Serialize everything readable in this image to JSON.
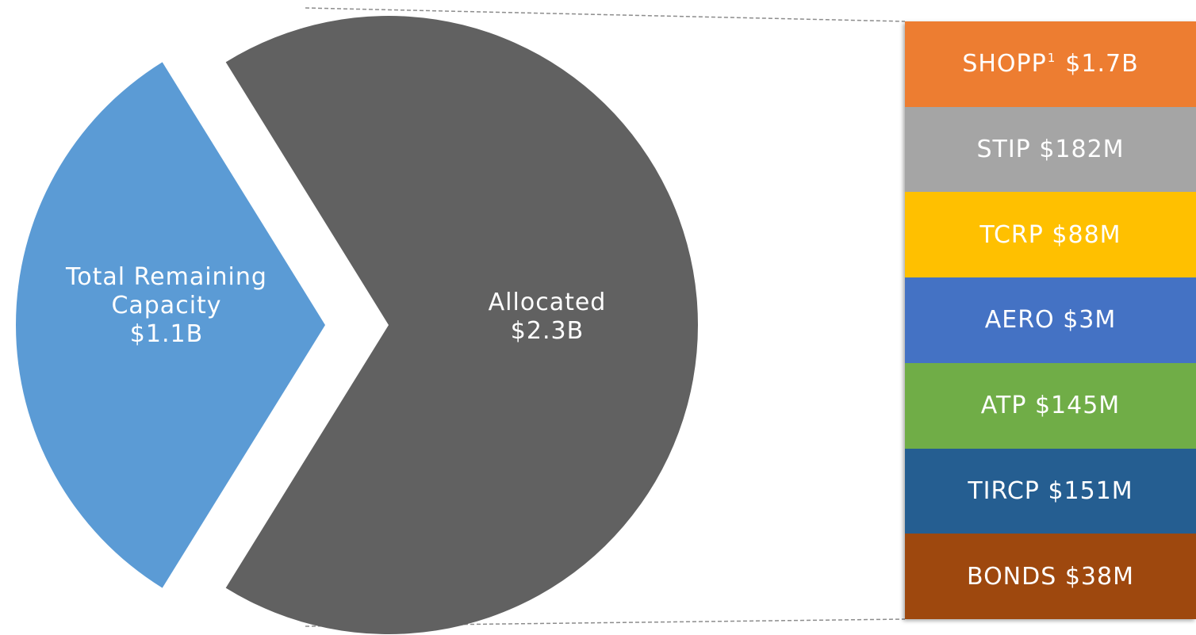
{
  "chart_data": [
    {
      "type": "pie",
      "title": "",
      "slices": [
        {
          "label_lines": [
            "Total Remaining",
            "Capacity",
            "$1.1B"
          ],
          "value": 1.1,
          "unit": "B",
          "color": "#5B9BD5",
          "exploded": true
        },
        {
          "label_lines": [
            "Allocated",
            "$2.3B"
          ],
          "value": 2.3,
          "unit": "B",
          "color": "#616161",
          "exploded": false
        }
      ]
    },
    {
      "type": "bar",
      "orientation": "stacked-vertical",
      "title": "",
      "breakdown_of": "Allocated",
      "segments": [
        {
          "name": "SHOPP",
          "superscript": "1",
          "value_label": "$1.7B",
          "color": "#ED7D31"
        },
        {
          "name": "STIP",
          "superscript": "",
          "value_label": "$182M",
          "color": "#A5A5A5"
        },
        {
          "name": "TCRP",
          "superscript": "",
          "value_label": "$88M",
          "color": "#FFC000"
        },
        {
          "name": "AERO",
          "superscript": "",
          "value_label": "$3M",
          "color": "#4472C4"
        },
        {
          "name": "ATP",
          "superscript": "",
          "value_label": "$145M",
          "color": "#70AD47"
        },
        {
          "name": "TIRCP",
          "superscript": "",
          "value_label": "$151M",
          "color": "#255E91"
        },
        {
          "name": "BONDS",
          "superscript": "",
          "value_label": "$38M",
          "color": "#9E480E"
        }
      ]
    }
  ]
}
